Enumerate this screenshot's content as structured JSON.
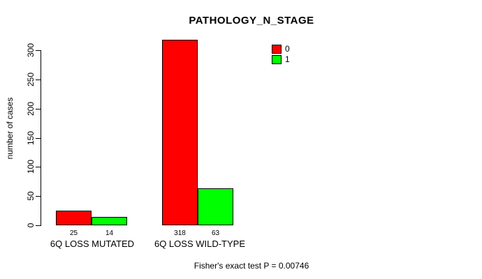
{
  "chart_data": {
    "type": "bar",
    "title": "PATHOLOGY_N_STAGE",
    "ylabel": "number of cases",
    "xlabel": "",
    "categories": [
      "6Q LOSS MUTATED",
      "6Q LOSS WILD-TYPE"
    ],
    "series": [
      {
        "name": "0",
        "color": "#ff0000",
        "values": [
          25,
          318
        ]
      },
      {
        "name": "1",
        "color": "#00ff00",
        "values": [
          14,
          63
        ]
      }
    ],
    "bar_value_labels": [
      [
        25,
        14
      ],
      [
        318,
        63
      ]
    ],
    "yticks": [
      0,
      50,
      100,
      150,
      200,
      250,
      300
    ],
    "ylim": [
      0,
      318
    ],
    "grid": false,
    "legend_position": "top-right",
    "annotation": "Fisher's exact test P = 0.00746"
  },
  "colors": {
    "background": "#ffffff",
    "axis": "#000000",
    "bar_border": "#000000",
    "series_0": "#ff0000",
    "series_1": "#00ff00"
  }
}
